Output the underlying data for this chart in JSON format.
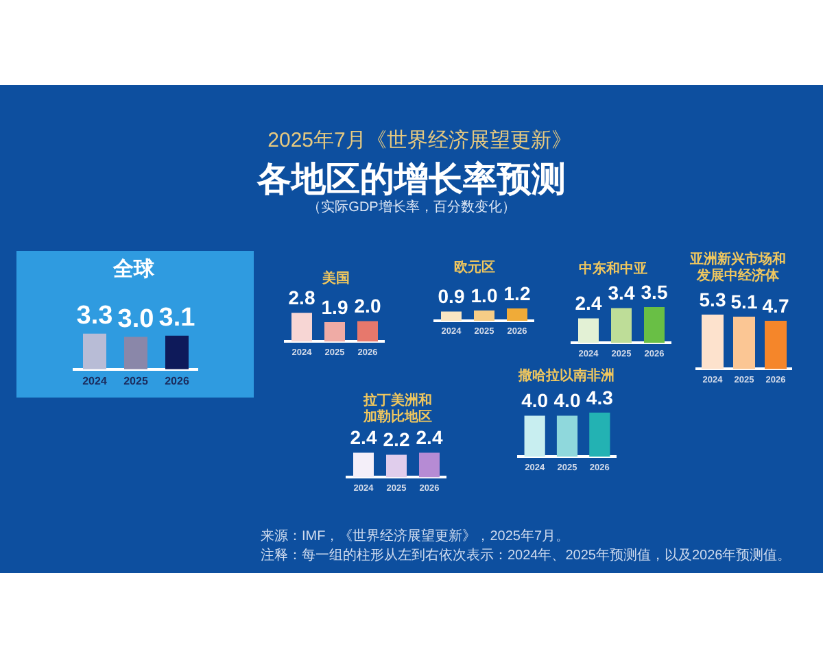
{
  "chart_data": [
    {
      "type": "other",
      "title": "各地区的增长率预测",
      "subtitle": "（实际GDP增长率，百分数变化）",
      "annotations": [
        "2025年7月《世界经济展望更新》",
        "来源：IMF，《世界经济展望更新》，2025年7月。",
        "注释：每一组的柱形从左到右依次表示：2024年、2025年预测值，以及2026年预测值。"
      ]
    },
    {
      "type": "bar",
      "title": "全球",
      "categories": [
        "2024",
        "2025",
        "2026"
      ],
      "values": [
        3.3,
        3.0,
        3.1
      ],
      "colors": [
        "#b8bcd6",
        "#8a87a9",
        "#0e1a5a"
      ],
      "value_labels": [
        "3.3",
        "3.0",
        "3.1"
      ]
    },
    {
      "type": "bar",
      "title": "美国",
      "categories": [
        "2024",
        "2025",
        "2026"
      ],
      "values": [
        2.8,
        1.9,
        2.0
      ],
      "colors": [
        "#f7d6d4",
        "#efaba5",
        "#e7786c"
      ],
      "value_labels": [
        "2.8",
        "1.9",
        "2.0"
      ]
    },
    {
      "type": "bar",
      "title": "欧元区",
      "categories": [
        "2024",
        "2025",
        "2026"
      ],
      "values": [
        0.9,
        1.0,
        1.2
      ],
      "colors": [
        "#f9e6c3",
        "#f6cd86",
        "#f0ab38"
      ],
      "value_labels": [
        "0.9",
        "1.0",
        "1.2"
      ]
    },
    {
      "type": "bar",
      "title": "中东和中亚",
      "categories": [
        "2024",
        "2025",
        "2026"
      ],
      "values": [
        2.4,
        3.4,
        3.5
      ],
      "colors": [
        "#e3f1d5",
        "#bedd98",
        "#69bf45"
      ],
      "value_labels": [
        "2.4",
        "3.4",
        "3.5"
      ]
    },
    {
      "type": "bar",
      "title": "亚洲新兴市场和发展中经济体",
      "categories": [
        "2024",
        "2025",
        "2026"
      ],
      "values": [
        5.3,
        5.1,
        4.7
      ],
      "colors": [
        "#fde2cd",
        "#fbc694",
        "#f5862a"
      ],
      "value_labels": [
        "5.3",
        "5.1",
        "4.7"
      ]
    },
    {
      "type": "bar",
      "title": "撒哈拉以南非洲",
      "categories": [
        "2024",
        "2025",
        "2026"
      ],
      "values": [
        4.0,
        4.0,
        4.3
      ],
      "colors": [
        "#c8eef0",
        "#8fd8dc",
        "#23b2b3"
      ],
      "value_labels": [
        "4.0",
        "4.0",
        "4.3"
      ]
    },
    {
      "type": "bar",
      "title": "拉丁美洲和加勒比地区",
      "categories": [
        "2024",
        "2025",
        "2026"
      ],
      "values": [
        2.4,
        2.2,
        2.4
      ],
      "colors": [
        "#f4eff9",
        "#e0cdec",
        "#b68bd4"
      ],
      "value_labels": [
        "2.4",
        "2.2",
        "2.4"
      ]
    }
  ]
}
